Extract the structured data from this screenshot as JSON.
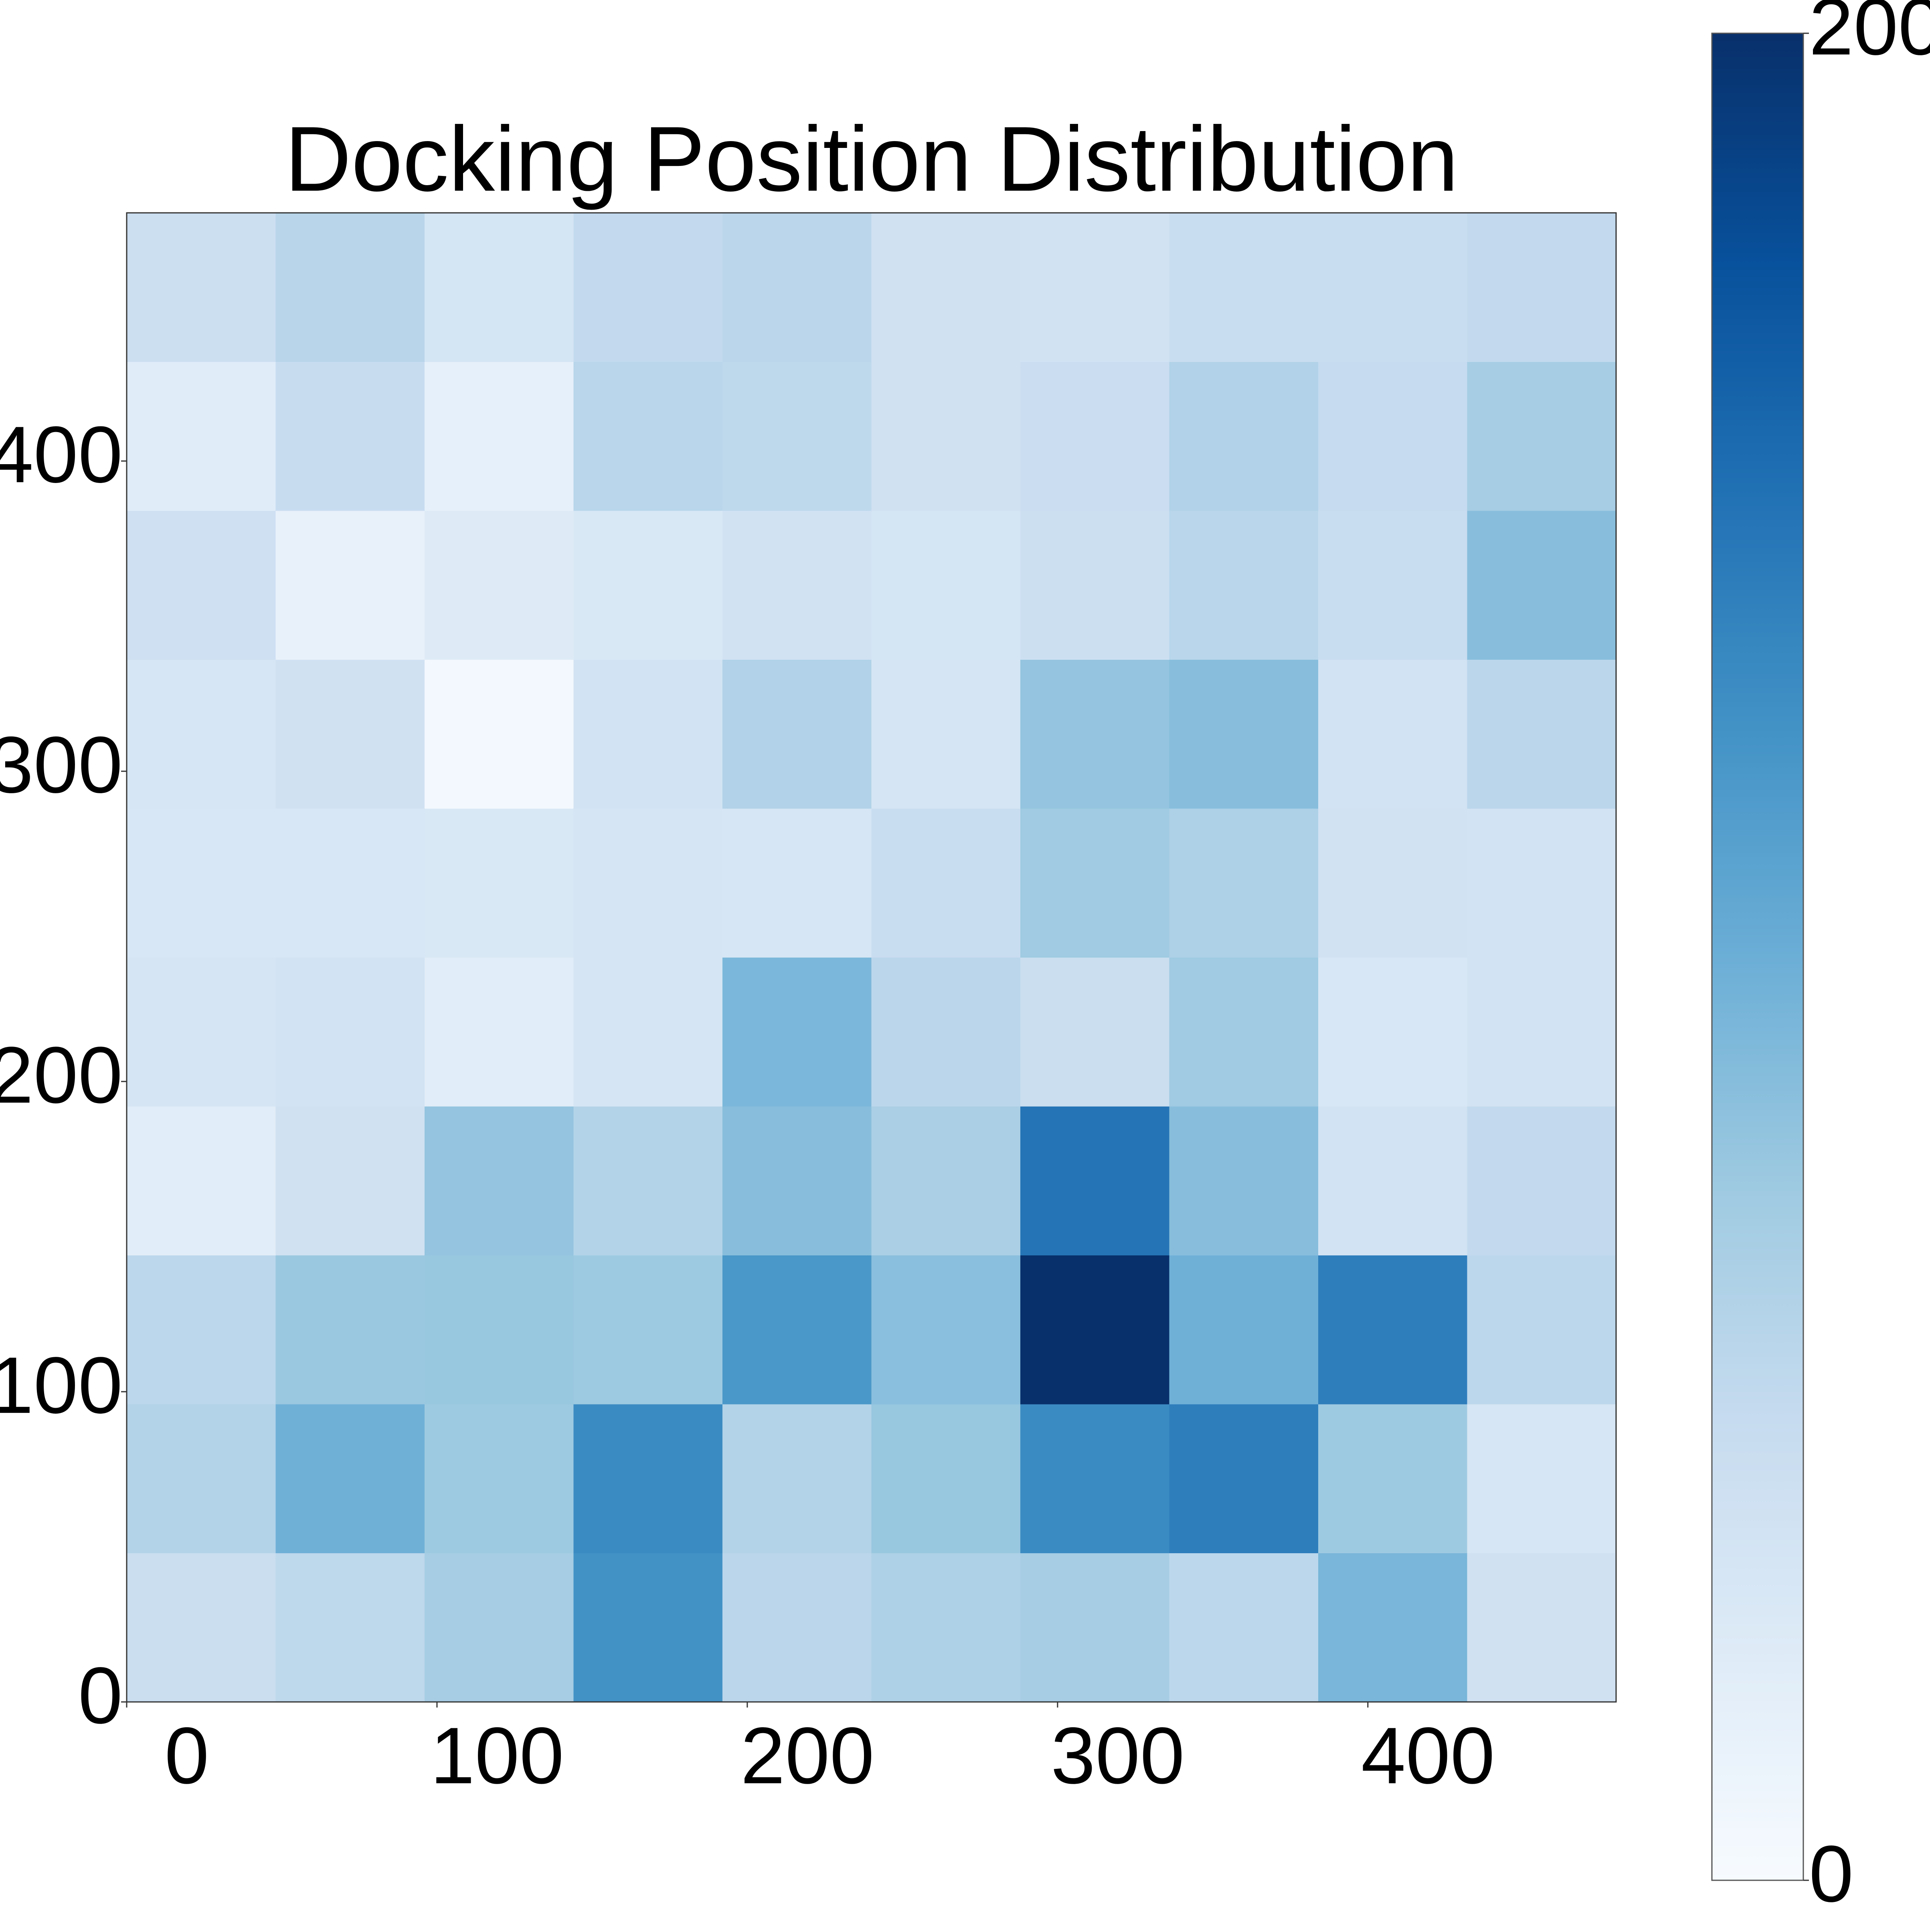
{
  "chart_data": {
    "type": "heatmap",
    "title": "Docking Position Distribution",
    "colormap": "Blues",
    "xbins": [
      0,
      48,
      96,
      144,
      192,
      240,
      288,
      336,
      384,
      432,
      480
    ],
    "ybins": [
      0,
      48,
      96,
      144,
      192,
      240,
      288,
      336,
      384,
      432,
      480
    ],
    "values": [
      [
        46,
        55,
        70,
        125,
        57,
        65,
        70,
        56,
        93,
        40
      ],
      [
        62,
        98,
        75,
        130,
        62,
        78,
        130,
        140,
        75,
        33
      ],
      [
        56,
        77,
        78,
        75,
        120,
        85,
        200,
        98,
        140,
        56
      ],
      [
        22,
        40,
        80,
        62,
        86,
        67,
        148,
        86,
        37,
        52
      ],
      [
        34,
        37,
        22,
        34,
        92,
        57,
        46,
        74,
        31,
        37
      ],
      [
        31,
        31,
        30,
        34,
        33,
        47,
        74,
        65,
        39,
        38
      ],
      [
        33,
        40,
        4,
        38,
        63,
        34,
        80,
        86,
        37,
        57
      ],
      [
        42,
        15,
        25,
        30,
        39,
        35,
        44,
        58,
        47,
        86
      ],
      [
        23,
        48,
        17,
        58,
        55,
        40,
        45,
        63,
        50,
        70
      ],
      [
        44,
        59,
        35,
        52,
        57,
        40,
        39,
        47,
        47,
        52
      ]
    ],
    "xlim": [
      0,
      480
    ],
    "ylim": [
      0,
      480
    ],
    "xticks": [
      0,
      100,
      200,
      300,
      400
    ],
    "yticks": [
      0,
      100,
      200,
      300,
      400
    ],
    "clim": [
      0,
      200
    ],
    "cticks": [
      0,
      200
    ]
  }
}
